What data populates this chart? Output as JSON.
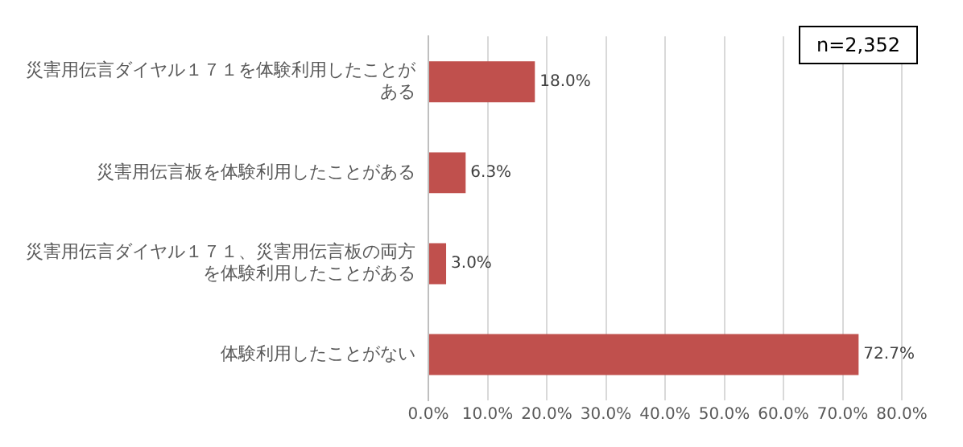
{
  "chart_data": {
    "type": "bar",
    "orientation": "horizontal",
    "categories": [
      "災害用伝言ダイヤル１７１を体験利用したことがある",
      "災害用伝言板を体験利用したことがある",
      "災害用伝言ダイヤル１７１、災害用伝言板の両方を体験利用したことがある",
      "体験利用したことがない"
    ],
    "values": [
      18.0,
      6.3,
      3.0,
      72.7
    ],
    "value_labels": [
      "18.0%",
      "6.3%",
      "3.0%",
      "72.7%"
    ],
    "color": "#c0504d",
    "xlim": [
      0,
      80
    ],
    "xticks": [
      {
        "value": 0,
        "label": "0.0%"
      },
      {
        "value": 10,
        "label": "10.0%"
      },
      {
        "value": 20,
        "label": "20.0%"
      },
      {
        "value": 30,
        "label": "30.0%"
      },
      {
        "value": 40,
        "label": "40.0%"
      },
      {
        "value": 50,
        "label": "50.0%"
      },
      {
        "value": 60,
        "label": "60.0%"
      },
      {
        "value": 70,
        "label": "70.0%"
      },
      {
        "value": 80,
        "label": "80.0%"
      }
    ],
    "grid": "x",
    "annotations": [
      "n=2,352"
    ]
  }
}
